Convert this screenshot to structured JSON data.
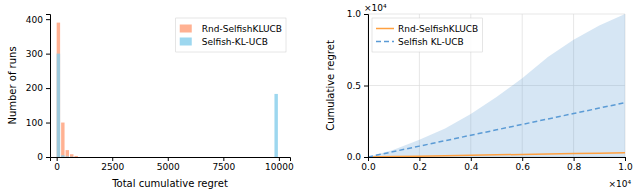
{
  "chart_data": [
    {
      "type": "histogram",
      "xlabel": "Total cumulative regret",
      "ylabel": "Number of runs",
      "bins": [
        0,
        200,
        400,
        600,
        800,
        1000,
        9800,
        10000
      ],
      "series": [
        {
          "name": "Rnd-SelfishKLUCB",
          "color": "#FFA07A",
          "values": [
            390,
            100,
            20,
            8,
            3,
            0,
            0
          ]
        },
        {
          "name": "Selfish-KL-UCB",
          "color": "#87CEEB",
          "values": [
            300,
            5,
            2,
            1,
            0,
            0,
            183
          ]
        }
      ],
      "xlim": [
        -300,
        10500
      ],
      "ylim": [
        0,
        415
      ],
      "xticks": [
        0,
        2500,
        5000,
        7500,
        10000
      ],
      "yticks": [
        0,
        100,
        200,
        300,
        400
      ],
      "legend": "upper right"
    },
    {
      "type": "line",
      "ylabel": "Cumulative regret",
      "x": [
        0,
        0.1,
        0.2,
        0.3,
        0.4,
        0.5,
        0.6,
        0.7,
        0.8,
        0.9,
        1
      ],
      "series": [
        {
          "name": "Rnd-SelfishKLUCB",
          "color": "#FFA040",
          "line_style": "solid",
          "values": [
            0,
            0.003,
            0.006,
            0.009,
            0.012,
            0.015,
            0.018,
            0.021,
            0.024,
            0.027,
            0.03
          ]
        },
        {
          "name": "Selfish KL-UCB",
          "color": "#5b9bd5",
          "line_style": "dashed",
          "values": [
            0,
            0.038,
            0.076,
            0.114,
            0.152,
            0.19,
            0.228,
            0.266,
            0.304,
            0.342,
            0.38
          ],
          "lower": [
            0,
            0,
            0,
            0,
            0,
            0,
            0,
            0,
            0,
            0,
            0
          ],
          "upper": [
            0,
            0.05,
            0.12,
            0.2,
            0.3,
            0.42,
            0.55,
            0.7,
            0.82,
            0.92,
            1
          ]
        }
      ],
      "xlim": [
        0,
        1
      ],
      "ylim": [
        0,
        1
      ],
      "xticks": [
        {
          "value": 0,
          "label": "0.0"
        },
        0.2,
        0.4,
        0.6,
        0.8,
        {
          "value": 1,
          "label": "1.0"
        }
      ],
      "yticks": [
        {
          "value": 0,
          "label": "0.0"
        },
        0.5,
        {
          "value": 1,
          "label": "1.0"
        }
      ],
      "annotations": [
        "×10⁴",
        "×10⁴"
      ],
      "grid": true,
      "legend": "upper left"
    }
  ]
}
